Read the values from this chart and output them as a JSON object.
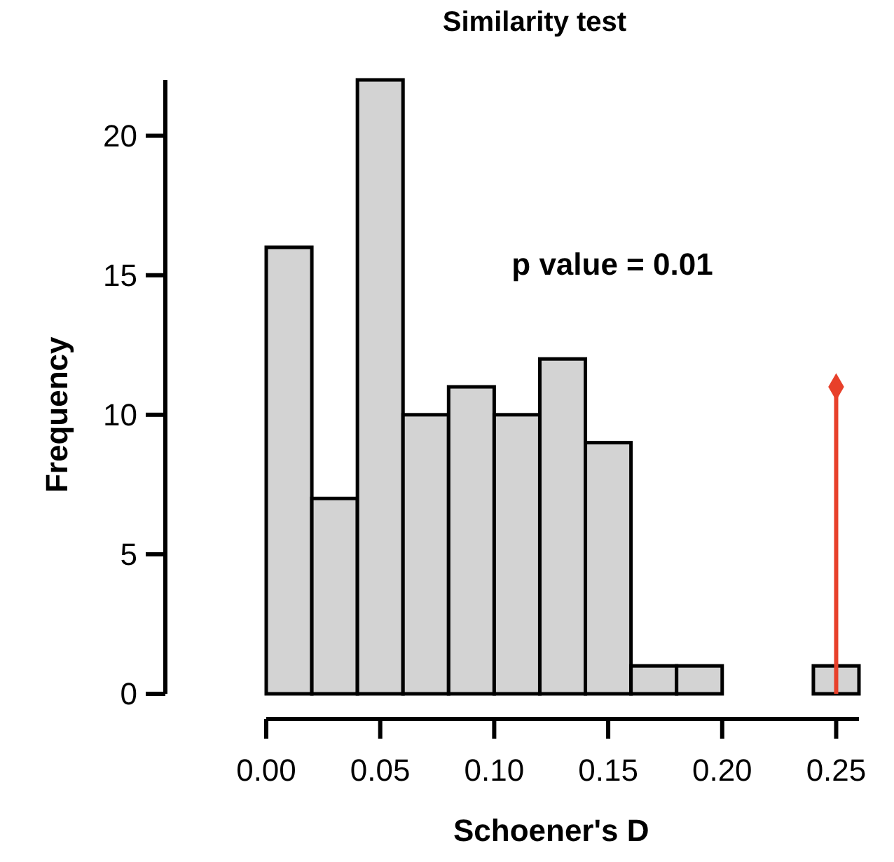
{
  "chart_data": {
    "type": "histogram",
    "title": "Similarity test",
    "xlabel": "Schoener's D",
    "ylabel": "Frequency",
    "bins": [
      0,
      0.02,
      0.04,
      0.06,
      0.08,
      0.1,
      0.12,
      0.14,
      0.16,
      0.18,
      0.2,
      0.22,
      0.24,
      0.26
    ],
    "series": [
      {
        "color": "#d3d3d3",
        "values": [
          16,
          7,
          22,
          10,
          11,
          10,
          12,
          9,
          1,
          1,
          0,
          0,
          1
        ]
      },
      {
        "type": "lollipop",
        "color": "#e8402a",
        "marker": "diamond",
        "x": [
          0.25
        ],
        "values": [
          11
        ]
      }
    ],
    "xlim": [
      0,
      0.26
    ],
    "xticks": [
      {
        "value": 0,
        "label": "0.00"
      },
      {
        "value": 0.05,
        "label": "0.05"
      },
      {
        "value": 0.1,
        "label": "0.10"
      },
      {
        "value": 0.15,
        "label": "0.15"
      },
      {
        "value": 0.2,
        "label": "0.20"
      },
      {
        "value": 0.25,
        "label": "0.25"
      }
    ],
    "ylim": [
      0,
      22
    ],
    "yticks": [
      0,
      5,
      10,
      15,
      20
    ],
    "annotations": [
      "p value = 0.01"
    ]
  }
}
